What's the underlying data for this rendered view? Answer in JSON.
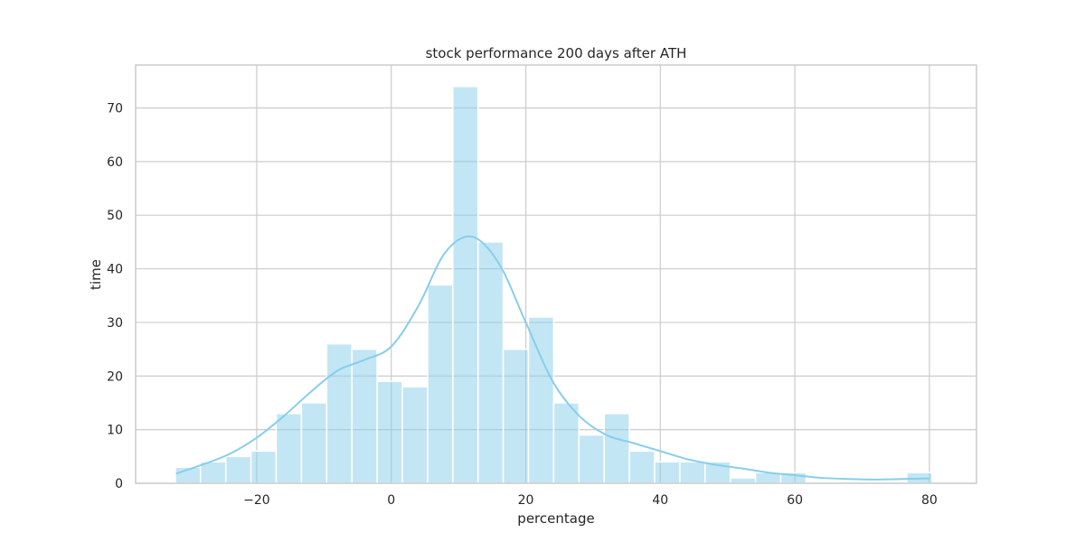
{
  "chart_data": {
    "type": "bar",
    "title": "stock performance 200 days after ATH",
    "xlabel": "percentage",
    "ylabel": "time",
    "xlim": [
      -38,
      87
    ],
    "ylim": [
      0,
      78
    ],
    "xticks": [
      -20,
      0,
      20,
      40,
      60,
      80
    ],
    "xtick_labels": [
      "−20",
      "0",
      "20",
      "40",
      "60",
      "80"
    ],
    "yticks": [
      0,
      10,
      20,
      30,
      40,
      50,
      60,
      70
    ],
    "grid": true,
    "bar_color": "#87ceeb",
    "bins": {
      "start": -32.1,
      "width": 3.75,
      "counts": [
        3,
        4,
        5,
        6,
        13,
        15,
        26,
        25,
        19,
        18,
        37,
        74,
        45,
        25,
        31,
        15,
        9,
        13,
        6,
        4,
        4,
        4,
        1,
        2,
        2,
        0,
        0,
        0,
        0,
        2
      ]
    },
    "kde": {
      "x": [
        -32,
        -28,
        -24,
        -20,
        -16,
        -12,
        -8,
        -4,
        0,
        4,
        8,
        12,
        16,
        20,
        24,
        28,
        32,
        36,
        40,
        44,
        48,
        52,
        56,
        60,
        64,
        68,
        72,
        76,
        80
      ],
      "y": [
        1.8,
        3.5,
        5.5,
        8.5,
        12.5,
        17.0,
        21.0,
        23.0,
        25.5,
        33.0,
        43.0,
        46.0,
        41.0,
        30.0,
        19.0,
        12.5,
        9.0,
        7.5,
        6.0,
        4.5,
        3.5,
        2.8,
        2.0,
        1.5,
        1.0,
        0.8,
        0.7,
        0.8,
        0.9
      ]
    }
  }
}
